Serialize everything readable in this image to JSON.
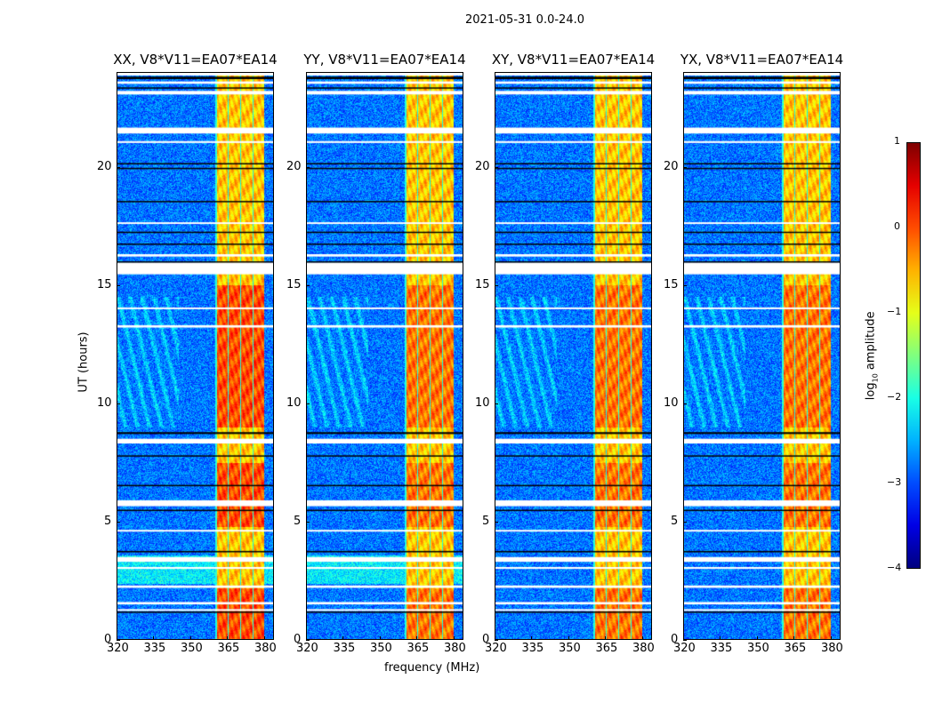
{
  "chart_data": {
    "type": "heatmap",
    "title": "2021-05-31 0.0-24.0",
    "panels": [
      {
        "title": "XX, V8*V11=EA07*EA14"
      },
      {
        "title": "YY, V8*V11=EA07*EA14"
      },
      {
        "title": "XY, V8*V11=EA07*EA14"
      },
      {
        "title": "YX, V8*V11=EA07*EA14"
      }
    ],
    "xlabel": "frequency (MHz)",
    "ylabel": "UT (hours)",
    "xlim": [
      320,
      384
    ],
    "ylim": [
      0,
      24
    ],
    "xticks": [
      "320",
      "335",
      "350",
      "365",
      "380"
    ],
    "xtick_values": [
      320,
      335,
      350,
      365,
      380
    ],
    "yticks": [
      "0",
      "5",
      "10",
      "15",
      "20"
    ],
    "ytick_values": [
      0,
      5,
      10,
      15,
      20
    ],
    "colorbar": {
      "label": "log10 amplitude",
      "label_main": "log",
      "label_sub": "10",
      "label_rest": " amplitude",
      "range": [
        -4,
        1
      ],
      "ticks": [
        "−4",
        "−3",
        "−2",
        "−1",
        "0",
        "1"
      ],
      "tick_values": [
        -4,
        -3,
        -2,
        -1,
        0,
        1
      ],
      "colormap": "jet"
    },
    "bright_band_mhz": [
      360,
      380
    ],
    "background_level": -2.8,
    "band_level": -0.6,
    "flagged_white_hours": [
      [
        23.85,
        24
      ],
      [
        23.5,
        23.6
      ],
      [
        23.05,
        23.2
      ],
      [
        21.4,
        21.65
      ],
      [
        21.0,
        21.08
      ],
      [
        17.6,
        17.65
      ],
      [
        16.2,
        16.3
      ],
      [
        15.45,
        15.95
      ],
      [
        14.0,
        14.05
      ],
      [
        13.2,
        13.3
      ],
      [
        8.3,
        8.5
      ],
      [
        5.65,
        5.9
      ],
      [
        4.6,
        4.65
      ],
      [
        3.3,
        3.5
      ],
      [
        3.0,
        3.08
      ],
      [
        2.2,
        2.3
      ],
      [
        1.5,
        1.6
      ],
      [
        1.25,
        1.3
      ]
    ],
    "flagged_black_hours": [
      [
        23.7,
        23.8
      ],
      [
        23.3,
        23.35
      ],
      [
        20.1,
        20.15
      ],
      [
        19.9,
        19.95
      ],
      [
        18.5,
        18.55
      ],
      [
        17.2,
        17.25
      ],
      [
        16.7,
        16.75
      ],
      [
        15.95,
        16.0
      ],
      [
        8.7,
        8.78
      ],
      [
        7.75,
        7.8
      ],
      [
        6.5,
        6.55
      ],
      [
        5.45,
        5.5
      ],
      [
        3.7,
        3.76
      ],
      [
        1.15,
        1.2
      ]
    ]
  }
}
